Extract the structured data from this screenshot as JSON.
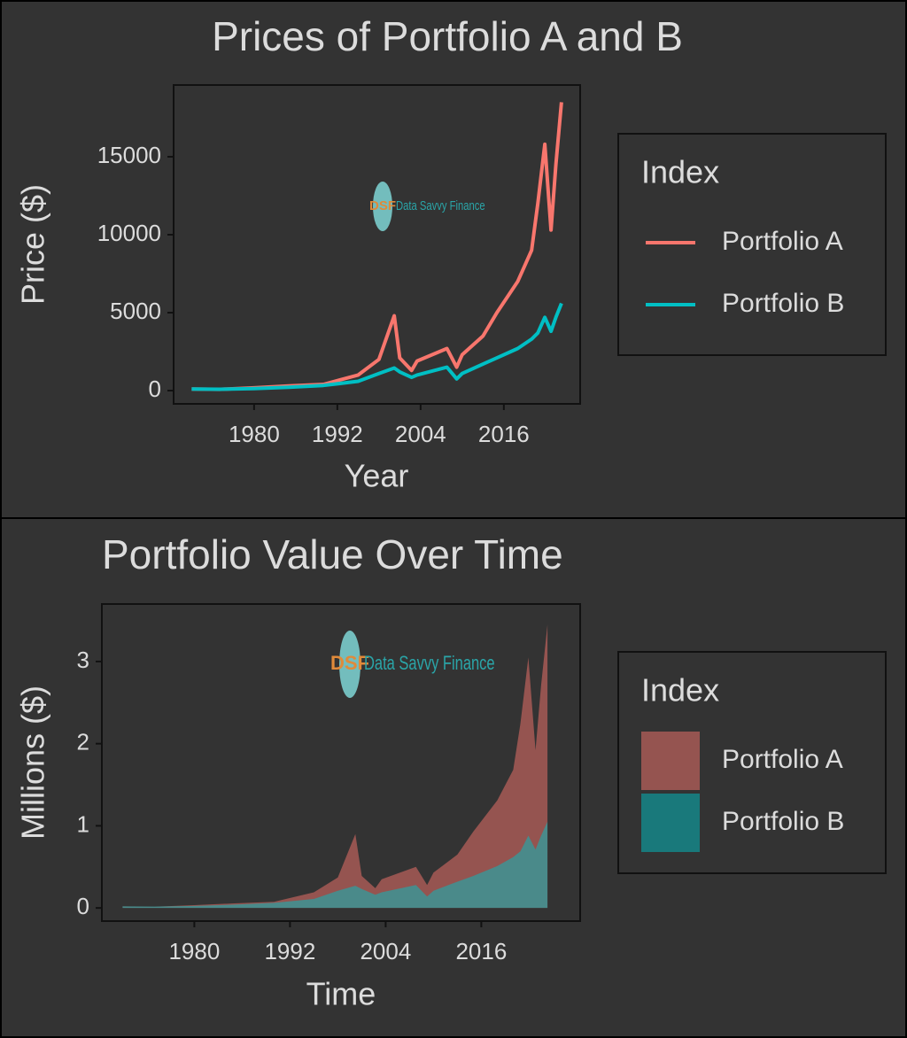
{
  "chart_data": [
    {
      "type": "line",
      "title": "Prices of Portfolio A and B",
      "x_label": "Year",
      "y_label": "Price ($)",
      "x": [
        1971,
        1975,
        1980,
        1985,
        1990,
        1995,
        1998,
        2000.2,
        2001,
        2002.7,
        2003.5,
        2007.8,
        2009.2,
        2010,
        2013,
        2015,
        2018,
        2020,
        2020.9,
        2021.9,
        2022.8,
        2023.5,
        2024.3
      ],
      "series": [
        {
          "name": "Portfolio A",
          "color": "#F8766D",
          "values": [
            100,
            80,
            180,
            300,
            400,
            1000,
            2000,
            4800,
            2100,
            1300,
            1900,
            2700,
            1500,
            2300,
            3500,
            5000,
            7000,
            9000,
            12000,
            15800,
            10300,
            14500,
            18500
          ]
        },
        {
          "name": "Portfolio B",
          "color": "#00BFC4",
          "values": [
            100,
            90,
            130,
            220,
            330,
            600,
            1100,
            1450,
            1200,
            850,
            1000,
            1500,
            750,
            1100,
            1700,
            2100,
            2700,
            3300,
            3700,
            4700,
            3800,
            4700,
            5600
          ]
        }
      ],
      "xlim": [
        1968.4,
        2027
      ],
      "ylim": [
        -850,
        19600
      ],
      "xticks": [
        1980,
        1992,
        2004,
        2016
      ],
      "yticks": [
        0,
        5000,
        10000,
        15000
      ],
      "legend_title": "Index",
      "watermark": {
        "badge": "DSF",
        "text": "Data Savvy Finance"
      }
    },
    {
      "type": "area",
      "title": "Portfolio Value Over Time",
      "x_label": "Time",
      "y_label": "Millions ($)",
      "x": [
        1971,
        1975,
        1980,
        1985,
        1990,
        1995,
        1998,
        2000.2,
        2001,
        2002.7,
        2003.5,
        2007.8,
        2009.2,
        2010,
        2013,
        2015,
        2018,
        2020,
        2020.9,
        2021.9,
        2022.8,
        2023.5,
        2024.3
      ],
      "series": [
        {
          "name": "Portfolio A",
          "color": "#F8766D",
          "values": [
            0.019,
            0.015,
            0.034,
            0.056,
            0.075,
            0.19,
            0.37,
            0.9,
            0.39,
            0.24,
            0.35,
            0.5,
            0.28,
            0.43,
            0.65,
            0.93,
            1.31,
            1.68,
            2.24,
            3.05,
            1.92,
            2.71,
            3.45
          ]
        },
        {
          "name": "Portfolio B",
          "color": "#00BFC4",
          "values": [
            0.019,
            0.017,
            0.024,
            0.041,
            0.062,
            0.11,
            0.21,
            0.27,
            0.23,
            0.16,
            0.19,
            0.28,
            0.14,
            0.21,
            0.32,
            0.39,
            0.51,
            0.62,
            0.69,
            0.88,
            0.71,
            0.88,
            1.05
          ]
        }
      ],
      "xlim": [
        1968.4,
        2028.4
      ],
      "ylim": [
        -0.16,
        3.7
      ],
      "xticks": [
        1980,
        1992,
        2004,
        2016
      ],
      "yticks": [
        0,
        1,
        2,
        3
      ],
      "legend_title": "Index",
      "watermark": {
        "badge": "DSF",
        "text": "Data Savvy Finance"
      }
    }
  ]
}
